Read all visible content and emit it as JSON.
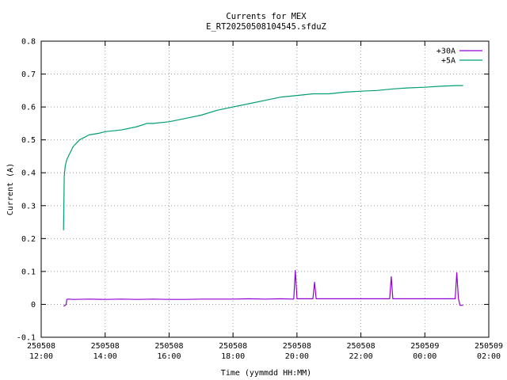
{
  "chart_data": {
    "type": "line",
    "title": "Currents for MEX",
    "subtitle": "E_RT20250508104545.sfduZ",
    "xlabel": "Time (yymmdd HH:MM)",
    "ylabel": "Current (A)",
    "ylim": [
      -0.1,
      0.8
    ],
    "yticks": [
      -0.1,
      0,
      0.1,
      0.2,
      0.3,
      0.4,
      0.5,
      0.6,
      0.7,
      0.8
    ],
    "ytick_labels": [
      "-0.1",
      "0",
      "0.1",
      "0.2",
      "0.3",
      "0.4",
      "0.5",
      "0.6",
      "0.7",
      "0.8"
    ],
    "xlim_hours": [
      12,
      26
    ],
    "xticks": [
      {
        "date": "250508",
        "time": "12:00"
      },
      {
        "date": "250508",
        "time": "14:00"
      },
      {
        "date": "250508",
        "time": "16:00"
      },
      {
        "date": "250508",
        "time": "18:00"
      },
      {
        "date": "250508",
        "time": "20:00"
      },
      {
        "date": "250508",
        "time": "22:00"
      },
      {
        "date": "250509",
        "time": "00:00"
      },
      {
        "date": "250509",
        "time": "02:00"
      }
    ],
    "grid": true,
    "legend_position": "top-right",
    "series": [
      {
        "name": "+30A",
        "color": "#9400d3",
        "x": [
          12.7,
          12.72,
          12.78,
          12.8,
          12.85,
          13.0,
          13.5,
          14.0,
          14.5,
          15.0,
          15.5,
          16.0,
          16.5,
          17.0,
          17.5,
          18.0,
          18.5,
          19.0,
          19.5,
          19.9,
          19.95,
          20.0,
          20.5,
          20.55,
          20.6,
          21.0,
          21.5,
          22.0,
          22.5,
          22.9,
          22.95,
          23.0,
          23.5,
          24.0,
          24.5,
          24.95,
          25.0,
          25.05,
          25.1,
          25.2
        ],
        "y": [
          -0.005,
          -0.005,
          0.0,
          0.015,
          0.016,
          0.015,
          0.016,
          0.015,
          0.016,
          0.015,
          0.016,
          0.015,
          0.015,
          0.016,
          0.016,
          0.016,
          0.017,
          0.016,
          0.017,
          0.016,
          0.103,
          0.017,
          0.017,
          0.067,
          0.017,
          0.017,
          0.017,
          0.017,
          0.017,
          0.017,
          0.084,
          0.017,
          0.017,
          0.017,
          0.017,
          0.017,
          0.096,
          0.017,
          -0.003,
          -0.003
        ]
      },
      {
        "name": "+5A",
        "color": "#009e73",
        "x": [
          12.7,
          12.72,
          12.75,
          12.8,
          12.9,
          13.0,
          13.2,
          13.5,
          13.8,
          14.0,
          14.5,
          15.0,
          15.3,
          15.5,
          16.0,
          16.5,
          17.0,
          17.5,
          18.0,
          18.5,
          19.0,
          19.5,
          20.0,
          20.5,
          21.0,
          21.5,
          22.0,
          22.5,
          23.0,
          23.5,
          24.0,
          24.5,
          25.0,
          25.2
        ],
        "y": [
          0.225,
          0.39,
          0.42,
          0.44,
          0.46,
          0.48,
          0.5,
          0.515,
          0.52,
          0.525,
          0.53,
          0.54,
          0.55,
          0.55,
          0.555,
          0.565,
          0.575,
          0.59,
          0.6,
          0.61,
          0.62,
          0.63,
          0.635,
          0.64,
          0.64,
          0.645,
          0.648,
          0.65,
          0.655,
          0.658,
          0.66,
          0.663,
          0.665,
          0.665
        ]
      }
    ]
  }
}
